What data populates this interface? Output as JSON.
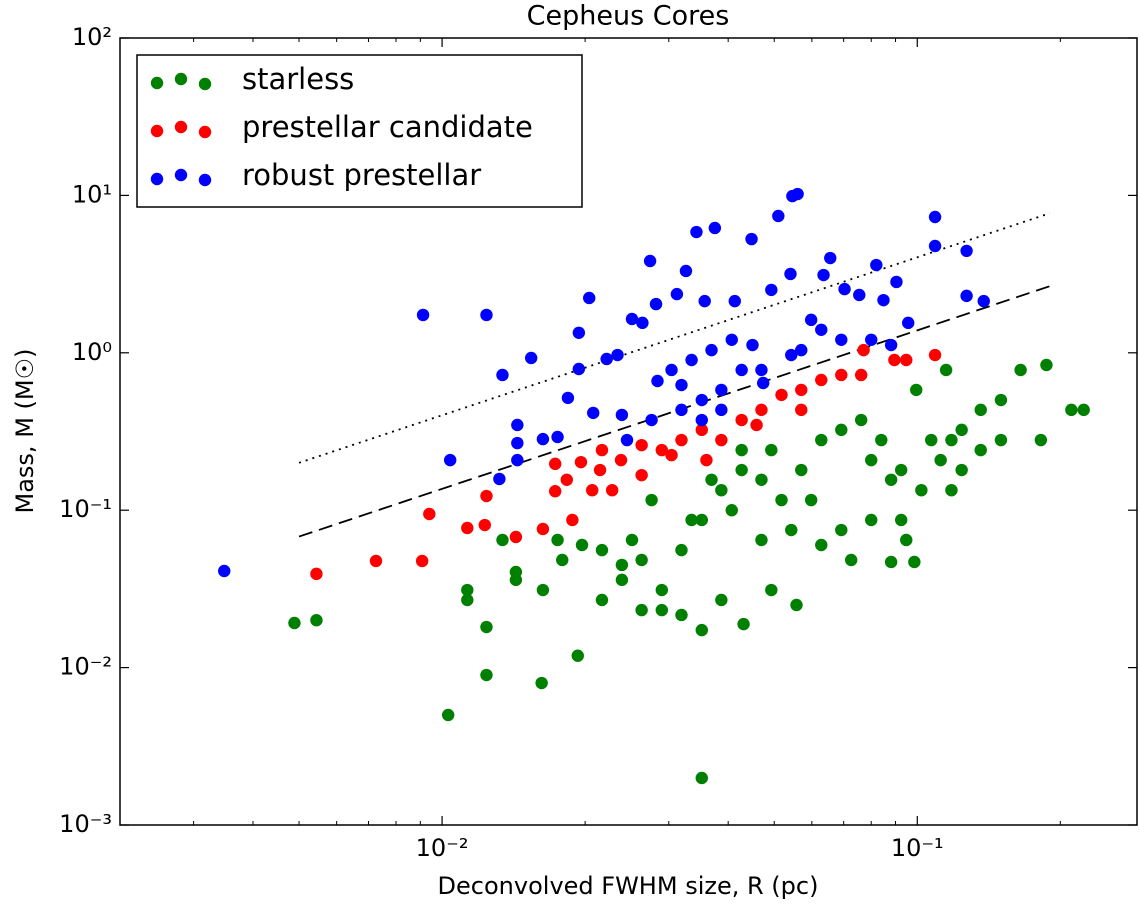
{
  "chart_data": {
    "type": "scatter",
    "title": "Cepheus Cores",
    "x_label": "Deconvolved FWHM size, R (pc)",
    "y_label": "Mass, M (M☉)",
    "xscale": "log",
    "yscale": "log",
    "xlim": [
      0.0021,
      0.29
    ],
    "ylim": [
      0.001,
      100
    ],
    "xticks": [
      {
        "value": 0.01,
        "label": "10⁻²"
      },
      {
        "value": 0.1,
        "label": "10⁻¹"
      }
    ],
    "xminorticks": [
      0.003,
      0.004,
      0.005,
      0.006,
      0.007,
      0.008,
      0.009,
      0.02,
      0.03,
      0.04,
      0.05,
      0.06,
      0.07,
      0.08,
      0.09,
      0.2
    ],
    "yticks": [
      {
        "value": 0.001,
        "label": "10⁻³"
      },
      {
        "value": 0.01,
        "label": "10⁻²"
      },
      {
        "value": 0.1,
        "label": "10⁻¹"
      },
      {
        "value": 1,
        "label": "10⁰"
      },
      {
        "value": 10,
        "label": "10¹"
      },
      {
        "value": 100,
        "label": "10²"
      }
    ],
    "legend": "upper left",
    "series": [
      {
        "name": "starless",
        "color": "#008000",
        "x": [
          0.00489,
          0.00544,
          0.0103,
          0.0113,
          0.0113,
          0.0124,
          0.0124,
          0.0134,
          0.0143,
          0.0143,
          0.0162,
          0.0163,
          0.0193,
          0.0175,
          0.0217,
          0.0239,
          0.0263,
          0.029,
          0.0319,
          0.0352,
          0.0352,
          0.0387,
          0.0427,
          0.047,
          0.0518,
          0.057,
          0.0628,
          0.0692,
          0.0762,
          0.084,
          0.0925,
          0.102,
          0.112,
          0.124,
          0.136,
          0.15,
          0.165,
          0.187,
          0.211,
          0.224,
          0.182,
          0.15,
          0.136,
          0.124,
          0.118,
          0.0925,
          0.08,
          0.0692,
          0.0628,
          0.0557,
          0.0493,
          0.0431,
          0.0387,
          0.0352,
          0.0319,
          0.029,
          0.0263,
          0.0239,
          0.0217,
          0.0197,
          0.0179,
          0.0335,
          0.0407,
          0.047,
          0.0543,
          0.0598,
          0.0276,
          0.0251,
          0.0369,
          0.0427,
          0.0493,
          0.0726,
          0.0881,
          0.0986,
          0.0948,
          0.0881,
          0.08,
          0.107,
          0.118,
          0.115,
          0.0995
        ],
        "values": [
          0.0192,
          0.02,
          0.005,
          0.0269,
          0.0311,
          0.0181,
          0.00897,
          0.0647,
          0.0405,
          0.0361,
          0.00798,
          0.0311,
          0.0119,
          0.0647,
          0.0269,
          0.0361,
          0.0483,
          0.0232,
          0.0558,
          0.00199,
          0.0867,
          0.134,
          0.18,
          0.156,
          0.116,
          0.18,
          0.279,
          0.324,
          0.374,
          0.279,
          0.18,
          0.134,
          0.208,
          0.324,
          0.434,
          0.501,
          0.778,
          0.837,
          0.434,
          0.434,
          0.279,
          0.279,
          0.241,
          0.18,
          0.134,
          0.0867,
          0.0867,
          0.0748,
          0.0601,
          0.025,
          0.0311,
          0.0189,
          0.0269,
          0.0173,
          0.0216,
          0.0311,
          0.0232,
          0.0449,
          0.0558,
          0.0601,
          0.0483,
          0.0867,
          0.1,
          0.0647,
          0.0748,
          0.116,
          0.116,
          0.0647,
          0.156,
          0.241,
          0.241,
          0.0483,
          0.0469,
          0.0469,
          0.0647,
          0.156,
          0.208,
          0.279,
          0.279,
          0.778,
          0.581
        ]
      },
      {
        "name": "prestellar candidate",
        "color": "#ff0000",
        "x": [
          0.00544,
          0.00726,
          0.00908,
          0.0094,
          0.0113,
          0.0123,
          0.0124,
          0.0143,
          0.0163,
          0.0173,
          0.0173,
          0.0188,
          0.0196,
          0.0217,
          0.0238,
          0.0263,
          0.029,
          0.0319,
          0.0352,
          0.0387,
          0.0427,
          0.047,
          0.0518,
          0.057,
          0.0628,
          0.0692,
          0.0762,
          0.0895,
          0.0948,
          0.109,
          0.0771,
          0.057,
          0.0459,
          0.036,
          0.0304,
          0.0263,
          0.0228,
          0.0207,
          0.0183,
          0.0215
        ],
        "values": [
          0.0394,
          0.0476,
          0.0476,
          0.0946,
          0.0771,
          0.0805,
          0.123,
          0.0676,
          0.076,
          0.132,
          0.197,
          0.0867,
          0.202,
          0.241,
          0.208,
          0.167,
          0.241,
          0.279,
          0.324,
          0.279,
          0.374,
          0.434,
          0.54,
          0.581,
          0.672,
          0.723,
          0.723,
          0.9,
          0.9,
          0.968,
          1.04,
          0.434,
          0.348,
          0.208,
          0.224,
          0.259,
          0.134,
          0.134,
          0.156,
          0.18
        ]
      },
      {
        "name": "robust prestellar",
        "color": "#0000ff",
        "x": [
          0.00348,
          0.00912,
          0.0124,
          0.0104,
          0.0134,
          0.0154,
          0.0144,
          0.0144,
          0.0144,
          0.0163,
          0.0175,
          0.0184,
          0.0194,
          0.0204,
          0.0194,
          0.0222,
          0.0234,
          0.0251,
          0.0264,
          0.0284,
          0.0274,
          0.0282,
          0.0312,
          0.0326,
          0.0343,
          0.0357,
          0.0375,
          0.0413,
          0.0448,
          0.045,
          0.0474,
          0.0493,
          0.051,
          0.0541,
          0.0546,
          0.056,
          0.0598,
          0.0635,
          0.0656,
          0.0703,
          0.0755,
          0.082,
          0.0849,
          0.0904,
          0.0957,
          0.109,
          0.109,
          0.127,
          0.127,
          0.138,
          0.0132,
          0.0208,
          0.0239,
          0.0276,
          0.0319,
          0.0352,
          0.0387,
          0.0427,
          0.047,
          0.0543,
          0.057,
          0.0628,
          0.0692,
          0.08,
          0.0881,
          0.0304,
          0.0335,
          0.0369,
          0.0407,
          0.0245,
          0.0352,
          0.0319,
          0.0387
        ],
        "values": [
          0.0411,
          1.74,
          1.74,
          0.208,
          0.723,
          0.927,
          0.348,
          0.267,
          0.208,
          0.283,
          0.292,
          0.517,
          0.789,
          2.23,
          1.34,
          0.914,
          0.968,
          1.64,
          1.55,
          0.662,
          3.83,
          2.04,
          2.36,
          3.31,
          5.85,
          2.13,
          6.21,
          2.13,
          5.28,
          1.12,
          0.643,
          2.51,
          7.4,
          3.17,
          9.9,
          10.2,
          1.62,
          3.12,
          4.0,
          2.54,
          2.33,
          3.61,
          2.16,
          2.82,
          1.55,
          7.29,
          4.77,
          4.44,
          2.3,
          2.13,
          0.158,
          0.415,
          0.403,
          0.374,
          0.624,
          0.501,
          0.581,
          0.778,
          0.778,
          0.968,
          1.04,
          1.4,
          1.21,
          1.21,
          1.12,
          0.778,
          0.9,
          1.04,
          1.21,
          0.279,
          0.374,
          0.434,
          0.434
        ]
      }
    ],
    "lines": [
      {
        "style": "dotted",
        "color": "#000000",
        "x": [
          0.005,
          0.19
        ],
        "values": [
          0.2,
          7.7
        ]
      },
      {
        "style": "dashed",
        "color": "#000000",
        "x": [
          0.005,
          0.19
        ],
        "values": [
          0.068,
          2.65
        ]
      }
    ]
  }
}
